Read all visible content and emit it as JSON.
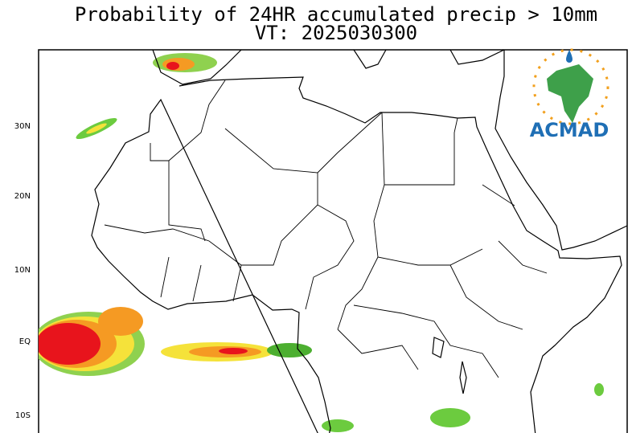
{
  "header": {
    "title": "Probability of 24HR accumulated precip > 10mm",
    "subtitle": "VT: 2025030300"
  },
  "map": {
    "lat_labels": [
      "30N",
      "20N",
      "10N",
      "EQ",
      "10S"
    ]
  },
  "logo": {
    "text": "ACMAD"
  }
}
